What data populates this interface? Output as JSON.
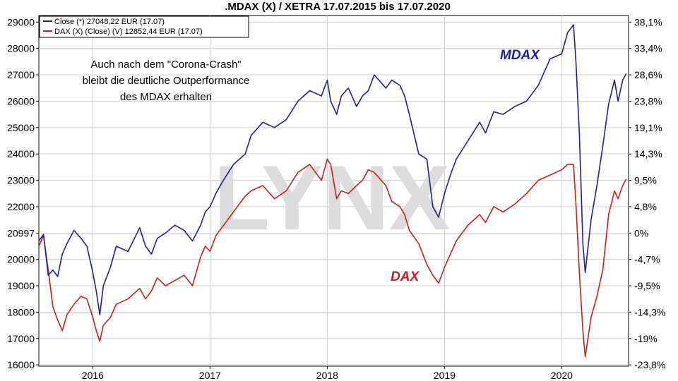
{
  "chart_data": {
    "type": "line",
    "title": ".MDAX (X) / XETRA 17.07.2015 bis 17.07.2020",
    "watermark": "LYNX",
    "legend": [
      {
        "label": "Close (*) 27048,22 EUR (17.07)",
        "color": "#1e1ea0"
      },
      {
        "label": "DAX (X) (Close) (V) 12852,44 EUR (17.07)",
        "color": "#c81e1e"
      }
    ],
    "annotation": [
      "Auch nach dem \"Corona-Crash\"",
      "bleibt die deutliche Outperformance",
      "des MDAX erhalten"
    ],
    "series_labels": [
      {
        "text": "MDAX",
        "color": "#1e1ea0"
      },
      {
        "text": "DAX",
        "color": "#c81e1e"
      }
    ],
    "x_ticks": [
      "2016",
      "2017",
      "2018",
      "2019",
      "2020"
    ],
    "x_tick_values": [
      2016.0,
      2017.0,
      2018.0,
      2019.0,
      2020.0
    ],
    "xlim": [
      2015.54,
      2020.57
    ],
    "ylim": [
      15950,
      29250
    ],
    "y_ticks_left": [
      "29000",
      "28000",
      "27000",
      "26000",
      "25000",
      "24000",
      "23000",
      "22000",
      "20997",
      "20000",
      "19000",
      "18000",
      "17000",
      "16000"
    ],
    "y_tick_values_left": [
      29000,
      28000,
      27000,
      26000,
      25000,
      24000,
      23000,
      22000,
      20997,
      20000,
      19000,
      18000,
      17000,
      16000
    ],
    "y_ticks_right": [
      "38,1%",
      "33,4%",
      "28,6%",
      "23,8%",
      "19,1%",
      "14,3%",
      "9,5%",
      "4,8%",
      "0%",
      "-4,7%",
      "-9,5%",
      "-14,3%",
      "-19%",
      "-23,8%"
    ],
    "grid": true,
    "series": [
      {
        "name": "Close (*) 27048,22 EUR (17.07)",
        "color": "#1e1ea0",
        "x": [
          2015.54,
          2015.58,
          2015.62,
          2015.66,
          2015.7,
          2015.74,
          2015.78,
          2015.84,
          2015.9,
          2015.95,
          2016.0,
          2016.03,
          2016.06,
          2016.09,
          2016.15,
          2016.2,
          2016.3,
          2016.4,
          2016.45,
          2016.5,
          2016.55,
          2016.62,
          2016.7,
          2016.78,
          2016.85,
          2016.92,
          2016.96,
          2017.0,
          2017.05,
          2017.1,
          2017.2,
          2017.3,
          2017.35,
          2017.45,
          2017.55,
          2017.65,
          2017.75,
          2017.85,
          2017.95,
          2018.0,
          2018.03,
          2018.08,
          2018.12,
          2018.18,
          2018.25,
          2018.3,
          2018.35,
          2018.4,
          2018.5,
          2018.55,
          2018.62,
          2018.66,
          2018.7,
          2018.78,
          2018.85,
          2018.9,
          2018.95,
          2019.0,
          2019.05,
          2019.1,
          2019.2,
          2019.3,
          2019.35,
          2019.42,
          2019.5,
          2019.6,
          2019.7,
          2019.8,
          2019.9,
          2020.0,
          2020.05,
          2020.1,
          2020.12,
          2020.15,
          2020.18,
          2020.2,
          2020.25,
          2020.3,
          2020.35,
          2020.4,
          2020.45,
          2020.48,
          2020.52,
          2020.55
        ],
        "values": [
          20700,
          20950,
          19400,
          19600,
          19350,
          20200,
          20600,
          21100,
          20800,
          20500,
          19500,
          18800,
          17900,
          19000,
          19700,
          20500,
          20300,
          21200,
          20500,
          20200,
          20800,
          21000,
          21300,
          21100,
          20700,
          21300,
          21800,
          22000,
          22500,
          22900,
          23600,
          24000,
          24700,
          25200,
          25000,
          25300,
          26000,
          26400,
          26200,
          26800,
          26000,
          25500,
          26200,
          26500,
          25800,
          26200,
          26400,
          27000,
          26500,
          26800,
          26600,
          26200,
          25500,
          24000,
          23800,
          22000,
          21600,
          22500,
          23200,
          23800,
          24500,
          25200,
          24800,
          25600,
          25500,
          25800,
          26000,
          26600,
          27600,
          27800,
          28600,
          28900,
          27600,
          24800,
          20600,
          19500,
          21500,
          22800,
          24300,
          25900,
          26800,
          26000,
          26800,
          27050
        ]
      },
      {
        "name": "DAX (X) (Close) (V) 12852,44 EUR (17.07)",
        "color": "#c81e1e",
        "x": [
          2015.54,
          2015.58,
          2015.62,
          2015.66,
          2015.7,
          2015.74,
          2015.78,
          2015.84,
          2015.9,
          2015.95,
          2016.0,
          2016.03,
          2016.06,
          2016.09,
          2016.15,
          2016.2,
          2016.3,
          2016.4,
          2016.45,
          2016.5,
          2016.55,
          2016.62,
          2016.7,
          2016.78,
          2016.85,
          2016.92,
          2016.96,
          2017.0,
          2017.05,
          2017.1,
          2017.2,
          2017.3,
          2017.35,
          2017.45,
          2017.55,
          2017.65,
          2017.75,
          2017.85,
          2017.95,
          2018.0,
          2018.03,
          2018.08,
          2018.12,
          2018.18,
          2018.25,
          2018.3,
          2018.35,
          2018.4,
          2018.5,
          2018.55,
          2018.62,
          2018.66,
          2018.7,
          2018.78,
          2018.85,
          2018.9,
          2018.95,
          2019.0,
          2019.05,
          2019.1,
          2019.2,
          2019.3,
          2019.35,
          2019.42,
          2019.5,
          2019.6,
          2019.7,
          2019.8,
          2019.9,
          2020.0,
          2020.05,
          2020.1,
          2020.12,
          2020.15,
          2020.18,
          2020.2,
          2020.25,
          2020.3,
          2020.35,
          2020.4,
          2020.45,
          2020.48,
          2020.52,
          2020.55
        ],
        "values": [
          20500,
          20900,
          19600,
          18200,
          17700,
          17300,
          17900,
          18300,
          18600,
          18500,
          17800,
          17300,
          16900,
          17500,
          17800,
          18300,
          18500,
          18900,
          18500,
          18800,
          19300,
          19000,
          19200,
          19400,
          19000,
          20100,
          20500,
          20300,
          20900,
          21200,
          21800,
          22400,
          22600,
          22800,
          22300,
          22600,
          23300,
          23600,
          23000,
          23800,
          23600,
          22300,
          22600,
          22500,
          22800,
          23000,
          23400,
          23300,
          22800,
          22200,
          22000,
          21700,
          21100,
          20600,
          19800,
          19400,
          19100,
          19700,
          20200,
          20700,
          21300,
          21700,
          21400,
          22000,
          21800,
          22100,
          22500,
          23000,
          23200,
          23400,
          23600,
          23600,
          22200,
          19500,
          17300,
          16300,
          17800,
          18600,
          19600,
          21700,
          22600,
          22300,
          22800,
          23050
        ]
      }
    ]
  }
}
